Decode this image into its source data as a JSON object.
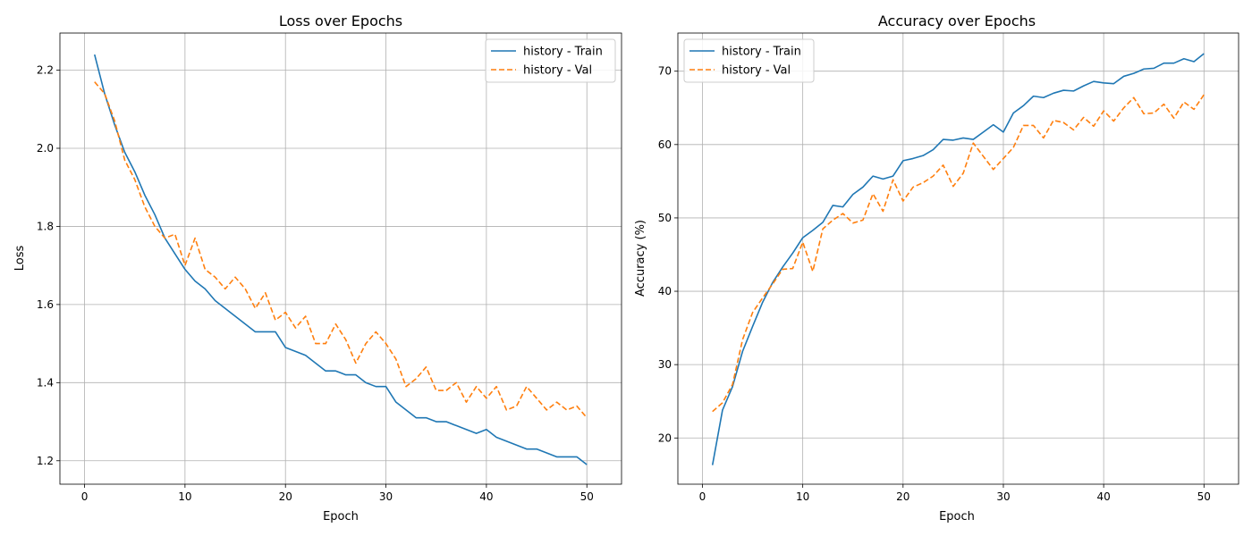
{
  "chart_data": [
    {
      "type": "line",
      "title": "Loss over Epochs",
      "xlabel": "Epoch",
      "ylabel": "Loss",
      "xlim": [
        -2.45,
        53.45
      ],
      "ylim": [
        1.14,
        2.295
      ],
      "xticks": [
        0,
        10,
        20,
        30,
        40,
        50
      ],
      "yticks": [
        1.2,
        1.4,
        1.6,
        1.8,
        2.0,
        2.2
      ],
      "ytick_labels": [
        "1.2",
        "1.4",
        "1.6",
        "1.8",
        "2.0",
        "2.2"
      ],
      "grid": true,
      "legend_position": "top-right",
      "x": [
        1,
        2,
        3,
        4,
        5,
        6,
        7,
        8,
        9,
        10,
        11,
        12,
        13,
        14,
        15,
        16,
        17,
        18,
        19,
        20,
        21,
        22,
        23,
        24,
        25,
        26,
        27,
        28,
        29,
        30,
        31,
        32,
        33,
        34,
        35,
        36,
        37,
        38,
        39,
        40,
        41,
        42,
        43,
        44,
        45,
        46,
        47,
        48,
        49,
        50
      ],
      "series": [
        {
          "name": "history - Train",
          "color": "#1f77b4",
          "dash": "solid",
          "values": [
            2.24,
            2.14,
            2.06,
            1.99,
            1.94,
            1.88,
            1.83,
            1.77,
            1.73,
            1.69,
            1.66,
            1.64,
            1.61,
            1.59,
            1.57,
            1.55,
            1.53,
            1.53,
            1.53,
            1.49,
            1.48,
            1.47,
            1.45,
            1.43,
            1.43,
            1.42,
            1.42,
            1.4,
            1.39,
            1.39,
            1.35,
            1.33,
            1.31,
            1.31,
            1.3,
            1.3,
            1.29,
            1.28,
            1.27,
            1.28,
            1.26,
            1.25,
            1.24,
            1.23,
            1.23,
            1.22,
            1.21,
            1.21,
            1.21,
            1.19
          ]
        },
        {
          "name": "history - Val",
          "color": "#ff7f0e",
          "dash": "dashed",
          "values": [
            2.17,
            2.14,
            2.07,
            1.97,
            1.92,
            1.85,
            1.8,
            1.77,
            1.78,
            1.7,
            1.77,
            1.69,
            1.67,
            1.64,
            1.67,
            1.64,
            1.59,
            1.63,
            1.56,
            1.58,
            1.54,
            1.57,
            1.5,
            1.5,
            1.55,
            1.51,
            1.45,
            1.5,
            1.53,
            1.5,
            1.46,
            1.39,
            1.41,
            1.44,
            1.38,
            1.38,
            1.4,
            1.35,
            1.39,
            1.36,
            1.39,
            1.33,
            1.34,
            1.39,
            1.36,
            1.33,
            1.35,
            1.33,
            1.34,
            1.31
          ]
        }
      ]
    },
    {
      "type": "line",
      "title": "Accuracy over Epochs",
      "xlabel": "Epoch",
      "ylabel": "Accuracy (%)",
      "xlim": [
        -2.45,
        53.45
      ],
      "ylim": [
        13.7,
        75.2
      ],
      "xticks": [
        0,
        10,
        20,
        30,
        40,
        50
      ],
      "yticks": [
        20,
        30,
        40,
        50,
        60,
        70
      ],
      "ytick_labels": [
        "20",
        "30",
        "40",
        "50",
        "60",
        "70"
      ],
      "grid": true,
      "legend_position": "top-left",
      "x": [
        1,
        2,
        3,
        4,
        5,
        6,
        7,
        8,
        9,
        10,
        11,
        12,
        13,
        14,
        15,
        16,
        17,
        18,
        19,
        20,
        21,
        22,
        23,
        24,
        25,
        26,
        27,
        28,
        29,
        30,
        31,
        32,
        33,
        34,
        35,
        36,
        37,
        38,
        39,
        40,
        41,
        42,
        43,
        44,
        45,
        46,
        47,
        48,
        49,
        50
      ],
      "series": [
        {
          "name": "history - Train",
          "color": "#1f77b4",
          "dash": "solid",
          "values": [
            16.3,
            23.8,
            27.0,
            31.8,
            35.2,
            38.5,
            41.2,
            43.3,
            45.2,
            47.3,
            48.3,
            49.4,
            51.7,
            51.5,
            53.2,
            54.2,
            55.7,
            55.3,
            55.7,
            57.8,
            58.1,
            58.5,
            59.3,
            60.7,
            60.6,
            60.9,
            60.7,
            61.7,
            62.7,
            61.7,
            64.3,
            65.3,
            66.6,
            66.4,
            67.0,
            67.4,
            67.3,
            68.0,
            68.6,
            68.4,
            68.3,
            69.3,
            69.7,
            70.3,
            70.4,
            71.1,
            71.1,
            71.7,
            71.3,
            72.4
          ]
        },
        {
          "name": "history - Val",
          "color": "#ff7f0e",
          "dash": "dashed",
          "values": [
            23.6,
            24.8,
            27.3,
            33.4,
            37.1,
            39.1,
            41.0,
            43.0,
            43.1,
            46.7,
            42.7,
            48.5,
            49.7,
            50.6,
            49.3,
            49.7,
            53.3,
            50.9,
            55.2,
            52.3,
            54.2,
            54.8,
            55.7,
            57.2,
            54.3,
            56.1,
            60.2,
            58.4,
            56.6,
            58.1,
            59.6,
            62.6,
            62.6,
            60.9,
            63.3,
            63.0,
            62.0,
            63.7,
            62.5,
            64.6,
            63.2,
            65.0,
            66.4,
            64.2,
            64.3,
            65.5,
            63.6,
            65.8,
            64.8,
            66.8
          ]
        }
      ]
    }
  ]
}
